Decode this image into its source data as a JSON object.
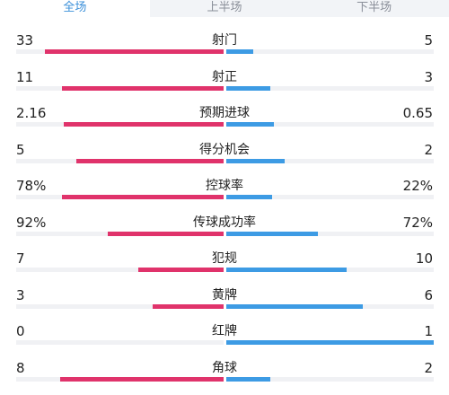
{
  "tabs": [
    "全场",
    "上半场",
    "下半场"
  ],
  "active_tab": 0,
  "colors": {
    "home": "#e0336b",
    "away": "#3d9be4",
    "track": "#f0f1f4",
    "tab_active": "#3a8fd9"
  },
  "stats": [
    {
      "label": "射门",
      "home": "33",
      "away": "5",
      "home_ratio": 0.86,
      "away_ratio": 0.13
    },
    {
      "label": "射正",
      "home": "11",
      "away": "3",
      "home_ratio": 0.78,
      "away_ratio": 0.21
    },
    {
      "label": "预期进球",
      "home": "2.16",
      "away": "0.65",
      "home_ratio": 0.77,
      "away_ratio": 0.23
    },
    {
      "label": "得分机会",
      "home": "5",
      "away": "2",
      "home_ratio": 0.71,
      "away_ratio": 0.28
    },
    {
      "label": "控球率",
      "home": "78%",
      "away": "22%",
      "home_ratio": 0.78,
      "away_ratio": 0.22
    },
    {
      "label": "传球成功率",
      "home": "92%",
      "away": "72%",
      "home_ratio": 0.56,
      "away_ratio": 0.44
    },
    {
      "label": "犯规",
      "home": "7",
      "away": "10",
      "home_ratio": 0.41,
      "away_ratio": 0.58
    },
    {
      "label": "黄牌",
      "home": "3",
      "away": "6",
      "home_ratio": 0.34,
      "away_ratio": 0.66
    },
    {
      "label": "红牌",
      "home": "0",
      "away": "1",
      "home_ratio": 0.0,
      "away_ratio": 1.0
    },
    {
      "label": "角球",
      "home": "8",
      "away": "2",
      "home_ratio": 0.79,
      "away_ratio": 0.21
    }
  ]
}
